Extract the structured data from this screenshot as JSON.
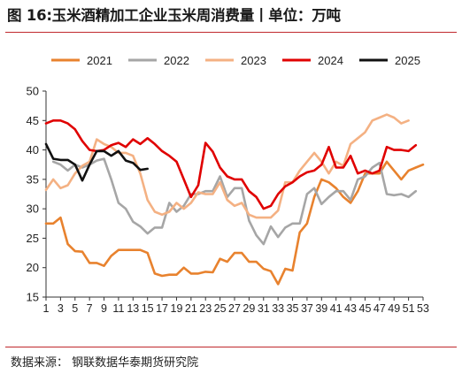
{
  "header": {
    "title": "图 16:玉米酒精加工企业玉米周消费量丨单位：万吨"
  },
  "footer": {
    "source": "数据来源：  钢联数据华泰期货研究院"
  },
  "chart_data": {
    "type": "line",
    "title": "图 16:玉米酒精加工企业玉米周消费量丨单位：万吨",
    "xlabel": "",
    "ylabel": "",
    "ylim": [
      15,
      50
    ],
    "yticks": [
      15,
      20,
      25,
      30,
      35,
      40,
      45,
      50
    ],
    "xlim": [
      1,
      53
    ],
    "xticks": [
      1,
      3,
      5,
      7,
      9,
      11,
      13,
      15,
      17,
      19,
      21,
      23,
      25,
      27,
      29,
      31,
      33,
      35,
      37,
      39,
      41,
      43,
      45,
      47,
      49,
      51,
      53
    ],
    "grid": false,
    "legend_position": "top",
    "series": [
      {
        "name": "2021",
        "color": "#e8822e",
        "values": [
          27.5,
          27.5,
          28.5,
          24,
          22.8,
          22.7,
          20.8,
          20.8,
          20.3,
          22,
          23,
          23,
          23,
          23,
          22.5,
          19,
          18.6,
          18.8,
          18.8,
          20,
          19,
          19,
          19.3,
          19.2,
          21.5,
          21,
          22.5,
          22.5,
          21,
          21,
          19.8,
          19.4,
          17.2,
          19.8,
          19.5,
          26,
          27.5,
          32,
          35,
          34.5,
          33.5,
          32,
          31,
          33,
          36,
          36,
          36,
          38,
          36.5,
          35,
          36.5,
          37,
          37.5
        ]
      },
      {
        "name": "2022",
        "color": "#a6a6a6",
        "values": [
          null,
          38,
          37.5,
          36.5,
          37.5,
          37,
          37.5,
          38.2,
          38.5,
          35,
          31,
          30,
          27.8,
          27,
          25.8,
          26.8,
          26.8,
          31,
          29.5,
          30.5,
          32.5,
          32.5,
          33,
          33,
          35.5,
          32,
          33.5,
          33.5,
          28,
          25.5,
          24,
          27,
          25.2,
          26.8,
          27.5,
          27.5,
          32.5,
          33.5,
          30.8,
          32,
          33,
          33,
          31.5,
          35,
          35.5,
          37,
          37.8,
          32.5,
          32.3,
          32.5,
          32,
          33
        ]
      },
      {
        "name": "2023",
        "color": "#f4b183",
        "values": [
          33.2,
          35,
          33.5,
          34,
          36,
          37.3,
          38,
          41.8,
          41,
          40.5,
          39.5,
          39.5,
          39,
          36,
          31.5,
          29.5,
          29,
          29.5,
          31,
          30,
          31,
          32.8,
          32.5,
          32.5,
          34.5,
          31.5,
          30.5,
          31,
          29,
          28.5,
          28.5,
          28.5,
          29.7,
          34.5,
          34.5,
          36.5,
          38,
          39.5,
          38,
          36,
          38,
          37.3,
          41,
          42,
          43,
          45,
          45.5,
          46,
          45.5,
          44.5,
          45
        ]
      },
      {
        "name": "2024",
        "color": "#e00000",
        "values": [
          44.5,
          45,
          45,
          44.5,
          43.5,
          41.5,
          40,
          39.8,
          40,
          40.8,
          41.2,
          40.5,
          41.8,
          41,
          42,
          41,
          39.8,
          39,
          38,
          35,
          32,
          34,
          41.2,
          39.7,
          37,
          35.5,
          35,
          35,
          33,
          32,
          30,
          30.5,
          32.5,
          33.8,
          34.5,
          35.5,
          36.2,
          36.5,
          37.5,
          40.5,
          37,
          37,
          39,
          36,
          36.5,
          36,
          36.5,
          40.5,
          40,
          40,
          39.8,
          40.8
        ]
      },
      {
        "name": "2025",
        "color": "#111111",
        "values": [
          41,
          38.5,
          38.3,
          38.3,
          37.5,
          34.8,
          37.5,
          39.8,
          39.8,
          39,
          39.8,
          38.2,
          37.8,
          36.6,
          36.8
        ]
      }
    ]
  }
}
